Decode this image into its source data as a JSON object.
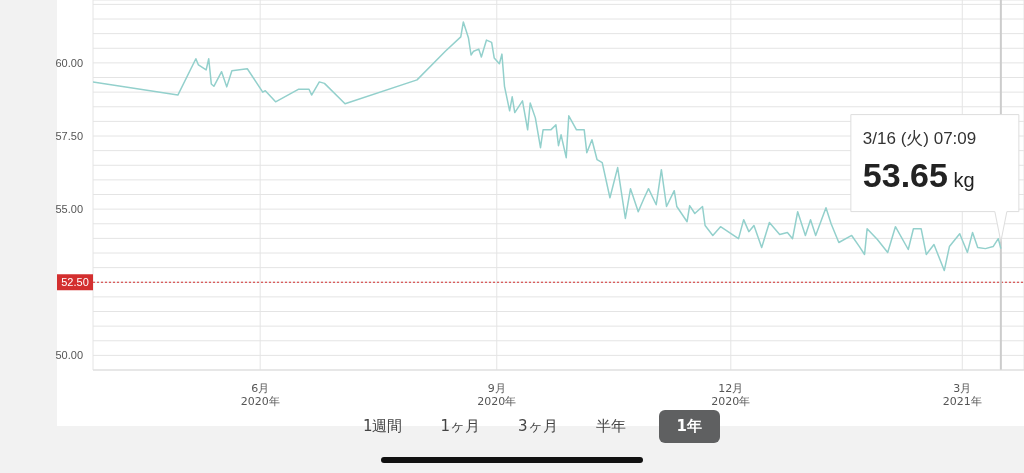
{
  "chart_data": {
    "type": "line",
    "x": [
      "2020-03-28",
      "2020-04-30",
      "2020-05-07",
      "2020-05-08",
      "2020-05-11",
      "2020-05-12",
      "2020-05-13",
      "2020-05-14",
      "2020-05-17",
      "2020-05-19",
      "2020-05-21",
      "2020-05-27",
      "2020-06-02",
      "2020-06-03",
      "2020-06-07",
      "2020-06-16",
      "2020-06-20",
      "2020-06-21",
      "2020-06-24",
      "2020-06-26",
      "2020-07-04",
      "2020-08-01",
      "2020-08-12",
      "2020-08-18",
      "2020-08-19",
      "2020-08-21",
      "2020-08-22",
      "2020-08-23",
      "2020-08-25",
      "2020-08-26",
      "2020-08-28",
      "2020-08-30",
      "2020-08-31",
      "2020-09-02",
      "2020-09-03",
      "2020-09-04",
      "2020-09-06",
      "2020-09-07",
      "2020-09-08",
      "2020-09-11",
      "2020-09-13",
      "2020-09-14",
      "2020-09-16",
      "2020-09-18",
      "2020-09-19",
      "2020-09-22",
      "2020-09-24",
      "2020-09-25",
      "2020-09-26",
      "2020-09-28",
      "2020-09-29",
      "2020-10-02",
      "2020-10-05",
      "2020-10-06",
      "2020-10-08",
      "2020-10-10",
      "2020-10-12",
      "2020-10-15",
      "2020-10-18",
      "2020-10-21",
      "2020-10-23",
      "2020-10-26",
      "2020-10-28",
      "2020-10-30",
      "2020-11-02",
      "2020-11-04",
      "2020-11-06",
      "2020-11-09",
      "2020-11-10",
      "2020-11-14",
      "2020-11-15",
      "2020-11-17",
      "2020-11-20",
      "2020-11-21",
      "2020-11-24",
      "2020-11-27",
      "2020-12-04",
      "2020-12-06",
      "2020-12-08",
      "2020-12-10",
      "2020-12-13",
      "2020-12-16",
      "2020-12-20",
      "2020-12-23",
      "2020-12-25",
      "2020-12-27",
      "2020-12-30",
      "2021-01-01",
      "2021-01-03",
      "2021-01-07",
      "2021-01-09",
      "2021-01-12",
      "2021-01-17",
      "2021-01-20",
      "2021-01-22",
      "2021-01-23",
      "2021-01-27",
      "2021-01-31",
      "2021-02-03",
      "2021-02-08",
      "2021-02-10",
      "2021-02-13",
      "2021-02-15",
      "2021-02-18",
      "2021-02-22",
      "2021-02-24",
      "2021-02-28",
      "2021-03-03",
      "2021-03-05",
      "2021-03-07",
      "2021-03-10",
      "2021-03-13",
      "2021-03-15",
      "2021-03-16"
    ],
    "series": [
      {
        "color": "#93d0cc",
        "values": [
          59.35,
          58.9,
          60.14,
          59.93,
          59.76,
          60.14,
          59.28,
          59.2,
          59.7,
          59.18,
          59.73,
          59.8,
          59.0,
          59.05,
          58.67,
          59.1,
          59.1,
          58.9,
          59.35,
          59.3,
          58.6,
          59.42,
          60.4,
          60.89,
          61.4,
          60.85,
          60.27,
          60.4,
          60.47,
          60.2,
          60.78,
          60.7,
          60.17,
          59.97,
          60.3,
          59.2,
          58.36,
          58.84,
          58.3,
          58.7,
          57.71,
          58.63,
          58.12,
          57.1,
          57.71,
          57.71,
          57.88,
          57.17,
          57.54,
          56.76,
          58.19,
          57.71,
          57.71,
          56.93,
          57.37,
          56.69,
          56.59,
          55.39,
          56.42,
          54.68,
          55.7,
          54.91,
          55.32,
          55.7,
          55.15,
          56.35,
          55.09,
          55.63,
          55.09,
          54.57,
          55.12,
          54.85,
          55.09,
          54.44,
          54.1,
          54.4,
          53.99,
          54.64,
          54.23,
          54.44,
          53.69,
          54.54,
          54.13,
          54.2,
          53.99,
          54.91,
          54.1,
          54.64,
          54.1,
          55.05,
          54.5,
          53.86,
          54.1,
          53.72,
          53.45,
          54.33,
          53.96,
          53.52,
          54.4,
          53.62,
          54.33,
          54.33,
          53.45,
          53.79,
          52.9,
          53.72,
          54.16,
          53.52,
          54.2,
          53.69,
          53.65,
          53.72,
          53.99,
          53.65
        ]
      }
    ],
    "xlim": [
      "2020-03-28",
      "2021-03-25"
    ],
    "xticks": [
      {
        "value": "2020-06-01",
        "label": "6月\n2020年"
      },
      {
        "value": "2020-09-01",
        "label": "9月\n2020年"
      },
      {
        "value": "2020-12-01",
        "label": "12月\n2020年"
      },
      {
        "value": "2021-03-01",
        "label": "3月\n2021年"
      }
    ],
    "ylim": [
      49.5,
      62.15
    ],
    "yticks": [
      {
        "value": 50,
        "label": "50.00"
      },
      {
        "value": 50.5,
        "label": null
      },
      {
        "value": 51,
        "label": null
      },
      {
        "value": 51.5,
        "label": null
      },
      {
        "value": 52,
        "label": null
      },
      {
        "value": 52.5,
        "label": null
      },
      {
        "value": 53,
        "label": null
      },
      {
        "value": 53.5,
        "label": null
      },
      {
        "value": 54,
        "label": null
      },
      {
        "value": 54.5,
        "label": null
      },
      {
        "value": 55,
        "label": "55.00"
      },
      {
        "value": 55.5,
        "label": null
      },
      {
        "value": 56,
        "label": null
      },
      {
        "value": 56.5,
        "label": null
      },
      {
        "value": 57,
        "label": null
      },
      {
        "value": 57.5,
        "label": "57.50"
      },
      {
        "value": 58,
        "label": null
      },
      {
        "value": 58.5,
        "label": null
      },
      {
        "value": 59,
        "label": null
      },
      {
        "value": 59.5,
        "label": null
      },
      {
        "value": 60,
        "label": "60.00"
      },
      {
        "value": 60.5,
        "label": null
      },
      {
        "value": 61,
        "label": null
      },
      {
        "value": 61.5,
        "label": null
      },
      {
        "value": 62,
        "label": null
      }
    ],
    "ref_lines": [
      {
        "axis": "y",
        "value": 52.5,
        "label": "52.50",
        "color": "#d32f2f",
        "line_style": "dotted"
      },
      {
        "axis": "x",
        "value": "2021-03-16",
        "color": "#cccccc",
        "line_style": "solid"
      }
    ],
    "annotations": [
      "3/16 (火) 07:09",
      {
        "text": "53.65 kg",
        "x": "2021-03-16",
        "y": 53.65
      },
      "1週間",
      "1ヶ月",
      "3ヶ月",
      "半年",
      "1年"
    ],
    "grid": true,
    "legend": false,
    "marker": "none",
    "line_style": "solid"
  }
}
